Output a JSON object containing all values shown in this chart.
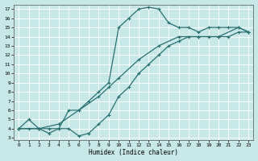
{
  "xlabel": "Humidex (Indice chaleur)",
  "bg_color": "#c8e8e8",
  "line_color": "#2a7070",
  "xlim": [
    -0.5,
    23.5
  ],
  "ylim": [
    2.8,
    17.5
  ],
  "xticks": [
    0,
    1,
    2,
    3,
    4,
    5,
    6,
    7,
    8,
    9,
    10,
    11,
    12,
    13,
    14,
    15,
    16,
    17,
    18,
    19,
    20,
    21,
    22,
    23
  ],
  "yticks": [
    3,
    4,
    5,
    6,
    7,
    8,
    9,
    10,
    11,
    12,
    13,
    14,
    15,
    16,
    17
  ],
  "line1_x": [
    0,
    1,
    2,
    3,
    4,
    5,
    6,
    7,
    8,
    9,
    10,
    11,
    12,
    13,
    14,
    15,
    16,
    17,
    18,
    19,
    20,
    21,
    22,
    23
  ],
  "line1_y": [
    4,
    5,
    4,
    4,
    4,
    6,
    6,
    7,
    8,
    9,
    15,
    16,
    17,
    17.2,
    17,
    15.5,
    15,
    15,
    14.5,
    15,
    15,
    15,
    15,
    14.5
  ],
  "line2_x": [
    0,
    1,
    2,
    3,
    4,
    5,
    6,
    7,
    8,
    9,
    10,
    11,
    12,
    13,
    14,
    15,
    16,
    17,
    18,
    19,
    20,
    21,
    22,
    23
  ],
  "line2_y": [
    4,
    4,
    4,
    3.5,
    4,
    4,
    3.2,
    3.5,
    4.5,
    5.5,
    7.5,
    8.5,
    10,
    11,
    12,
    13,
    13.5,
    14,
    14,
    14,
    14,
    14,
    14.5,
    14.5
  ],
  "line3_x": [
    0,
    2,
    4,
    6,
    8,
    9,
    10,
    12,
    14,
    16,
    18,
    20,
    22,
    23
  ],
  "line3_y": [
    4,
    4,
    4.5,
    6,
    7.5,
    8.5,
    9.5,
    11.5,
    13,
    14,
    14,
    14,
    15,
    14.5
  ]
}
